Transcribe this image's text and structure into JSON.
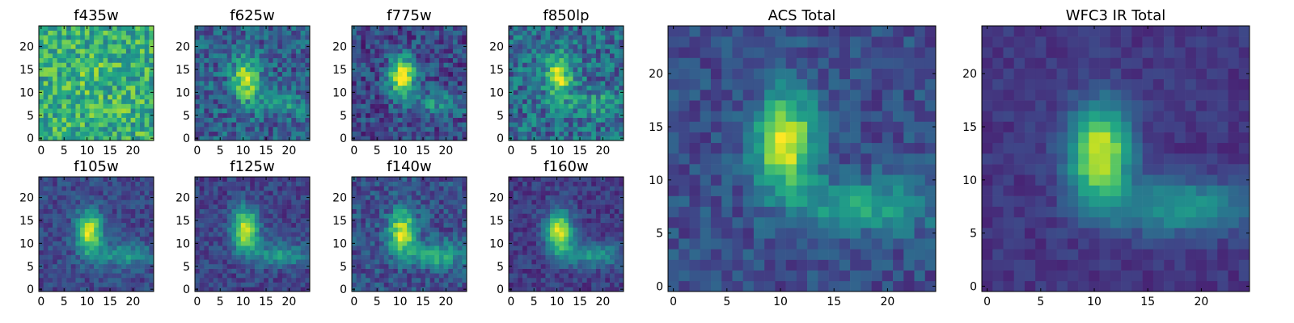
{
  "chart_data": [
    {
      "type": "heatmap",
      "title": "f435w",
      "x_ticks": [
        0,
        5,
        10,
        15,
        20
      ],
      "y_ticks": [
        0,
        5,
        10,
        15,
        20
      ],
      "xlim": [
        0,
        25
      ],
      "ylim": [
        0,
        25
      ],
      "grid": false,
      "source": {
        "cx": 11,
        "cy": 13.5,
        "peak": 0.25,
        "tail": 0.1,
        "noise": 0.45,
        "base": 0.62
      }
    },
    {
      "type": "heatmap",
      "title": "f625w",
      "x_ticks": [
        0,
        5,
        10,
        15,
        20
      ],
      "y_ticks": [
        0,
        5,
        10,
        15,
        20
      ],
      "xlim": [
        0,
        25
      ],
      "ylim": [
        0,
        25
      ],
      "grid": false,
      "source": {
        "cx": 10.5,
        "cy": 13,
        "peak": 0.9,
        "tail": 0.3,
        "noise": 0.38,
        "base": 0.3
      }
    },
    {
      "type": "heatmap",
      "title": "f775w",
      "x_ticks": [
        0,
        5,
        10,
        15,
        20
      ],
      "y_ticks": [
        0,
        5,
        10,
        15,
        20
      ],
      "xlim": [
        0,
        25
      ],
      "ylim": [
        0,
        25
      ],
      "grid": false,
      "source": {
        "cx": 10.5,
        "cy": 13.5,
        "peak": 0.95,
        "tail": 0.35,
        "noise": 0.35,
        "base": 0.22
      }
    },
    {
      "type": "heatmap",
      "title": "f850lp",
      "x_ticks": [
        0,
        5,
        10,
        15,
        20
      ],
      "y_ticks": [
        0,
        5,
        10,
        15,
        20
      ],
      "xlim": [
        0,
        25
      ],
      "ylim": [
        0,
        25
      ],
      "grid": false,
      "source": {
        "cx": 10.5,
        "cy": 13.5,
        "peak": 0.85,
        "tail": 0.35,
        "noise": 0.42,
        "base": 0.35
      }
    },
    {
      "type": "heatmap",
      "title": "f105w",
      "x_ticks": [
        0,
        5,
        10,
        15,
        20
      ],
      "y_ticks": [
        0,
        5,
        10,
        15,
        20
      ],
      "xlim": [
        0,
        25
      ],
      "ylim": [
        0,
        25
      ],
      "grid": false,
      "source": {
        "cx": 10.5,
        "cy": 12.5,
        "peak": 0.95,
        "tail": 0.4,
        "noise": 0.22,
        "base": 0.22
      }
    },
    {
      "type": "heatmap",
      "title": "f125w",
      "x_ticks": [
        0,
        5,
        10,
        15,
        20
      ],
      "y_ticks": [
        0,
        5,
        10,
        15,
        20
      ],
      "xlim": [
        0,
        25
      ],
      "ylim": [
        0,
        25
      ],
      "grid": false,
      "source": {
        "cx": 10.5,
        "cy": 13,
        "peak": 0.95,
        "tail": 0.42,
        "noise": 0.22,
        "base": 0.2
      }
    },
    {
      "type": "heatmap",
      "title": "f140w",
      "x_ticks": [
        0,
        5,
        10,
        15,
        20
      ],
      "y_ticks": [
        0,
        5,
        10,
        15,
        20
      ],
      "xlim": [
        0,
        25
      ],
      "ylim": [
        0,
        25
      ],
      "grid": false,
      "source": {
        "cx": 10.5,
        "cy": 12.5,
        "peak": 0.95,
        "tail": 0.55,
        "noise": 0.28,
        "base": 0.25
      }
    },
    {
      "type": "heatmap",
      "title": "f160w",
      "x_ticks": [
        0,
        5,
        10,
        15,
        20
      ],
      "y_ticks": [
        0,
        5,
        10,
        15,
        20
      ],
      "xlim": [
        0,
        25
      ],
      "ylim": [
        0,
        25
      ],
      "grid": false,
      "source": {
        "cx": 10.5,
        "cy": 12.5,
        "peak": 0.95,
        "tail": 0.45,
        "noise": 0.2,
        "base": 0.18
      }
    },
    {
      "type": "heatmap",
      "title": "ACS Total",
      "x_ticks": [
        0,
        5,
        10,
        15,
        20
      ],
      "y_ticks": [
        0,
        5,
        10,
        15,
        20
      ],
      "xlim": [
        0,
        25
      ],
      "ylim": [
        0,
        25
      ],
      "grid": false,
      "source": {
        "cx": 10.5,
        "cy": 13.5,
        "peak": 0.95,
        "tail": 0.45,
        "noise": 0.22,
        "base": 0.24
      }
    },
    {
      "type": "heatmap",
      "title": "WFC3 IR Total",
      "x_ticks": [
        0,
        5,
        10,
        15,
        20
      ],
      "y_ticks": [
        0,
        5,
        10,
        15,
        20
      ],
      "xlim": [
        0,
        25
      ],
      "ylim": [
        0,
        25
      ],
      "grid": false,
      "source": {
        "cx": 10.5,
        "cy": 12.5,
        "peak": 0.95,
        "tail": 0.45,
        "noise": 0.12,
        "base": 0.16
      }
    }
  ],
  "colormap": "viridis",
  "colors": {
    "axis": "#000000",
    "background": "#ffffff"
  }
}
